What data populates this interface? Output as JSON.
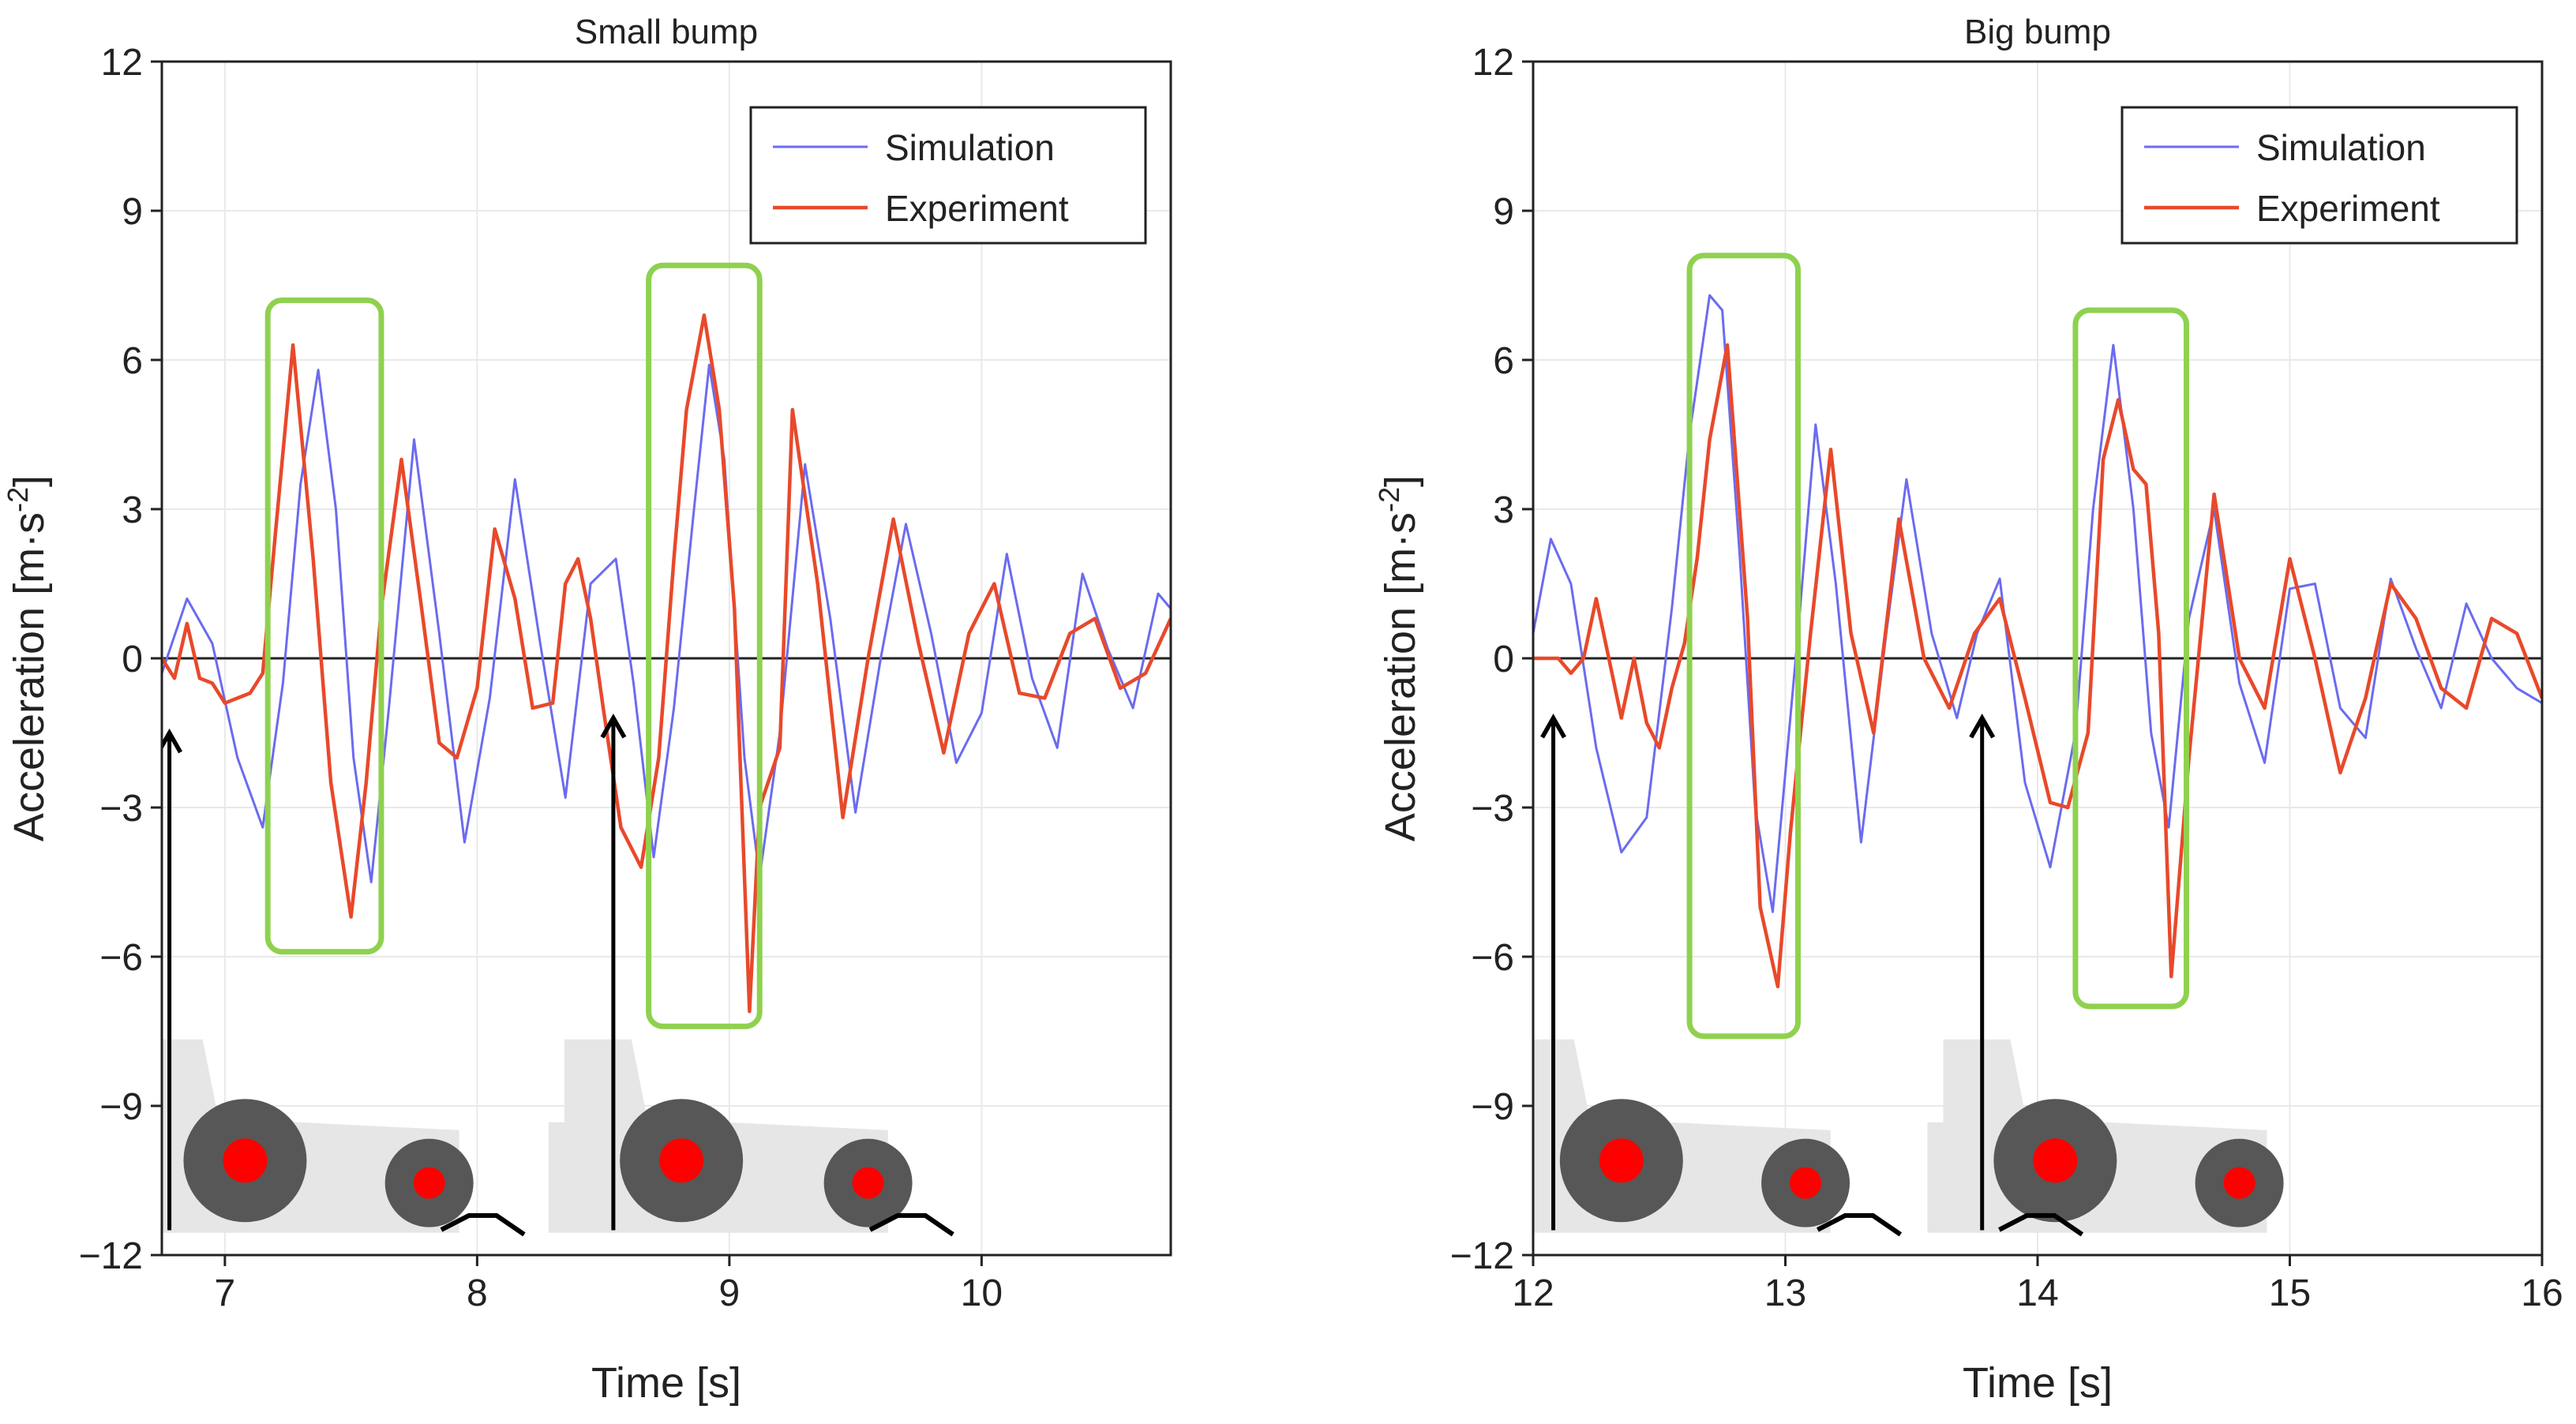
{
  "colors": {
    "simulation": "#6b6bf0",
    "experiment": "#e8492b",
    "highlight_box": "#8fd14f",
    "tractor_body": "#e6e6e6",
    "tire": "#575757",
    "hub": "#ff0000",
    "grid": "#e9e9e9",
    "zero_line": "#222222",
    "arrow": "#000000",
    "bump": "#000000"
  },
  "icons": [
    "tractor-icon",
    "bump-icon",
    "arrow-up-icon"
  ],
  "chart_data": [
    {
      "type": "line",
      "title": "Small bump",
      "xlabel": "Time [s]",
      "ylabel_main": "Acceleration [m·s",
      "ylabel_sup": "-2",
      "ylabel_end": "]",
      "xlim": [
        6.75,
        10.75
      ],
      "ylim": [
        -12,
        12
      ],
      "xticks": [
        7,
        8,
        9,
        10
      ],
      "xtick_labels": [
        "7",
        "8",
        "9",
        "10"
      ],
      "yticks": [
        -12,
        -9,
        -6,
        -3,
        0,
        3,
        6,
        9,
        12
      ],
      "ytick_labels": [
        "−12",
        "−9",
        "−6",
        "−3",
        "0",
        "3",
        "6",
        "9",
        "12"
      ],
      "grid": true,
      "legend": {
        "position": "top-right",
        "entries": [
          "Simulation",
          "Experiment"
        ]
      },
      "series": [
        {
          "name": "Simulation",
          "x": [
            6.75,
            6.85,
            6.95,
            7.05,
            7.15,
            7.23,
            7.3,
            7.37,
            7.44,
            7.51,
            7.58,
            7.65,
            7.75,
            7.85,
            7.95,
            8.05,
            8.15,
            8.25,
            8.35,
            8.45,
            8.55,
            8.62,
            8.7,
            8.78,
            8.86,
            8.92,
            8.98,
            9.06,
            9.12,
            9.2,
            9.3,
            9.4,
            9.5,
            9.6,
            9.7,
            9.8,
            9.9,
            10.0,
            10.1,
            10.2,
            10.3,
            10.4,
            10.5,
            10.6,
            10.7,
            10.75
          ],
          "y": [
            -0.3,
            1.2,
            0.3,
            -2.0,
            -3.4,
            -0.5,
            3.5,
            5.8,
            3.0,
            -2.0,
            -4.5,
            -1.0,
            4.4,
            0.5,
            -3.7,
            -0.8,
            3.6,
            0.3,
            -2.8,
            1.5,
            2.0,
            -0.5,
            -4.0,
            -1.0,
            3.0,
            5.9,
            4.0,
            -2.0,
            -4.4,
            -1.5,
            3.9,
            0.8,
            -3.1,
            0.0,
            2.7,
            0.5,
            -2.1,
            -1.1,
            2.1,
            -0.4,
            -1.8,
            1.7,
            0.2,
            -1.0,
            1.3,
            1.0
          ]
        },
        {
          "name": "Experiment",
          "x": [
            6.75,
            6.8,
            6.85,
            6.9,
            6.95,
            7.0,
            7.05,
            7.1,
            7.15,
            7.2,
            7.27,
            7.35,
            7.42,
            7.5,
            7.56,
            7.62,
            7.7,
            7.78,
            7.85,
            7.92,
            8.0,
            8.07,
            8.15,
            8.22,
            8.3,
            8.35,
            8.4,
            8.45,
            8.5,
            8.57,
            8.65,
            8.72,
            8.78,
            8.83,
            8.9,
            8.96,
            9.02,
            9.08,
            9.12,
            9.2,
            9.25,
            9.35,
            9.45,
            9.55,
            9.65,
            9.75,
            9.85,
            9.95,
            10.05,
            10.15,
            10.25,
            10.35,
            10.45,
            10.55,
            10.65,
            10.75
          ],
          "y": [
            0.0,
            -0.4,
            0.7,
            -0.4,
            -0.5,
            -0.9,
            -0.8,
            -0.7,
            -0.3,
            2.5,
            6.3,
            2.0,
            -2.5,
            -5.2,
            -2.5,
            1.0,
            4.0,
            1.0,
            -1.7,
            -2.0,
            -0.6,
            2.6,
            1.2,
            -1.0,
            -0.9,
            1.5,
            2.0,
            0.8,
            -1.0,
            -3.4,
            -4.2,
            -2.0,
            2.0,
            5.0,
            6.9,
            5.0,
            1.0,
            -7.1,
            -3.0,
            -1.8,
            5.0,
            1.5,
            -3.2,
            0.0,
            2.8,
            0.3,
            -1.9,
            0.5,
            1.5,
            -0.7,
            -0.8,
            0.5,
            0.8,
            -0.6,
            -0.3,
            0.8
          ]
        }
      ],
      "highlight_boxes": [
        {
          "x0": 7.17,
          "x1": 7.62,
          "y0": -5.9,
          "y1": 7.2
        },
        {
          "x0": 8.68,
          "x1": 9.12,
          "y0": -7.4,
          "y1": 7.9
        }
      ],
      "event_arrows": [
        {
          "x": 6.78,
          "y_from": -11.5,
          "y_to": -1.5
        },
        {
          "x": 8.54,
          "y_from": -11.5,
          "y_to": -1.2
        }
      ],
      "tractors": [
        {
          "x_center": 7.35,
          "rear_wheel_x": 7.08,
          "front_wheel_x": 7.81,
          "bump_x": 8.03
        },
        {
          "x_center": 9.05,
          "rear_wheel_x": 8.81,
          "front_wheel_x": 9.55,
          "bump_x": 9.73
        }
      ]
    },
    {
      "type": "line",
      "title": "Big bump",
      "xlabel": "Time [s]",
      "ylabel_main": "Acceleration [m·s",
      "ylabel_sup": "-2",
      "ylabel_end": "]",
      "xlim": [
        12.0,
        16.0
      ],
      "ylim": [
        -12,
        12
      ],
      "xticks": [
        12,
        13,
        14,
        15,
        16
      ],
      "xtick_labels": [
        "12",
        "13",
        "14",
        "15",
        "16"
      ],
      "yticks": [
        -12,
        -9,
        -6,
        -3,
        0,
        3,
        6,
        9,
        12
      ],
      "ytick_labels": [
        "−12",
        "−9",
        "−6",
        "−3",
        "0",
        "3",
        "6",
        "9",
        "12"
      ],
      "grid": true,
      "legend": {
        "position": "top-right",
        "entries": [
          "Simulation",
          "Experiment"
        ]
      },
      "series": [
        {
          "name": "Simulation",
          "x": [
            12.0,
            12.07,
            12.15,
            12.25,
            12.35,
            12.45,
            12.55,
            12.62,
            12.7,
            12.75,
            12.82,
            12.88,
            12.95,
            13.05,
            13.12,
            13.2,
            13.3,
            13.4,
            13.48,
            13.58,
            13.68,
            13.76,
            13.85,
            13.95,
            14.05,
            14.15,
            14.22,
            14.3,
            14.38,
            14.45,
            14.52,
            14.6,
            14.7,
            14.8,
            14.9,
            15.0,
            15.1,
            15.2,
            15.3,
            15.4,
            15.5,
            15.6,
            15.7,
            15.8,
            15.9,
            16.0
          ],
          "y": [
            0.5,
            2.4,
            1.5,
            -1.8,
            -3.9,
            -3.2,
            1.0,
            4.5,
            7.3,
            7.0,
            2.0,
            -3.0,
            -5.1,
            0.5,
            4.7,
            1.5,
            -3.7,
            0.5,
            3.6,
            0.5,
            -1.2,
            0.5,
            1.6,
            -2.5,
            -4.2,
            -1.5,
            3.0,
            6.3,
            3.0,
            -1.5,
            -3.4,
            0.8,
            3.0,
            -0.5,
            -2.1,
            1.4,
            1.5,
            -1.0,
            -1.6,
            1.6,
            0.2,
            -1.0,
            1.1,
            0.0,
            -0.6,
            -0.9
          ]
        },
        {
          "name": "Experiment",
          "x": [
            12.0,
            12.1,
            12.15,
            12.2,
            12.25,
            12.3,
            12.35,
            12.4,
            12.45,
            12.5,
            12.55,
            12.6,
            12.65,
            12.7,
            12.77,
            12.85,
            12.9,
            12.97,
            13.02,
            13.1,
            13.18,
            13.26,
            13.35,
            13.45,
            13.55,
            13.65,
            13.75,
            13.85,
            13.95,
            14.05,
            14.12,
            14.2,
            14.26,
            14.32,
            14.38,
            14.43,
            14.48,
            14.53,
            14.6,
            14.7,
            14.8,
            14.9,
            15.0,
            15.1,
            15.2,
            15.3,
            15.4,
            15.5,
            15.6,
            15.7,
            15.8,
            15.9,
            16.0
          ],
          "y": [
            0.0,
            0.0,
            -0.3,
            0.0,
            1.2,
            0.0,
            -1.2,
            0.0,
            -1.3,
            -1.8,
            -0.6,
            0.3,
            2.0,
            4.4,
            6.3,
            0.8,
            -5.0,
            -6.6,
            -3.5,
            0.5,
            4.2,
            0.5,
            -1.5,
            2.8,
            0.0,
            -1.0,
            0.5,
            1.2,
            -0.8,
            -2.9,
            -3.0,
            -1.5,
            4.0,
            5.2,
            3.8,
            3.5,
            0.5,
            -6.4,
            -2.0,
            3.3,
            0.0,
            -1.0,
            2.0,
            0.0,
            -2.3,
            -0.8,
            1.5,
            0.8,
            -0.6,
            -1.0,
            0.8,
            0.5,
            -0.8
          ]
        }
      ],
      "highlight_boxes": [
        {
          "x0": 12.62,
          "x1": 13.05,
          "y0": -7.6,
          "y1": 8.1
        },
        {
          "x0": 14.15,
          "x1": 14.59,
          "y0": -7.0,
          "y1": 7.0
        }
      ],
      "event_arrows": [
        {
          "x": 12.08,
          "y_from": -11.5,
          "y_to": -1.2
        },
        {
          "x": 13.78,
          "y_from": -11.5,
          "y_to": -1.2
        }
      ],
      "tractors": [
        {
          "x_center": 12.6,
          "rear_wheel_x": 12.35,
          "front_wheel_x": 13.08,
          "bump_x": 13.3
        },
        {
          "x_center": 14.33,
          "rear_wheel_x": 14.07,
          "front_wheel_x": 14.8,
          "bump_x": 14.02
        }
      ]
    }
  ]
}
